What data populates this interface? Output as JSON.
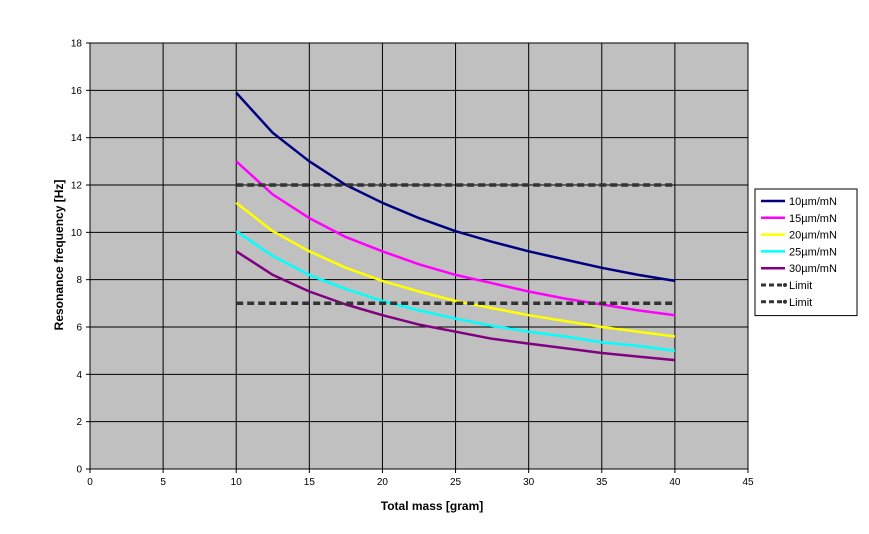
{
  "chart_data": {
    "type": "line",
    "title": "",
    "xlabel": "Total mass [gram]",
    "ylabel": "Resonance frequency [Hz]",
    "xlim": [
      0,
      45
    ],
    "ylim": [
      0,
      18
    ],
    "xticks": [
      0,
      5,
      10,
      15,
      20,
      25,
      30,
      35,
      40,
      45
    ],
    "yticks": [
      0,
      2,
      4,
      6,
      8,
      10,
      12,
      14,
      16,
      18
    ],
    "grid": true,
    "legend_position": "right",
    "background_color": "#c0c0c0",
    "x": [
      10,
      12.5,
      15,
      17.5,
      20,
      22.5,
      25,
      27.5,
      30,
      32.5,
      35,
      37.5,
      40
    ],
    "series": [
      {
        "name": "10µm/mN",
        "color": "#000080",
        "style": "solid",
        "values": [
          15.9,
          14.2,
          13.0,
          12.0,
          11.25,
          10.6,
          10.05,
          9.6,
          9.2,
          8.85,
          8.5,
          8.2,
          7.95
        ]
      },
      {
        "name": "15µm/mN",
        "color": "#ff00ff",
        "style": "solid",
        "values": [
          13.0,
          11.6,
          10.6,
          9.8,
          9.2,
          8.65,
          8.2,
          7.85,
          7.5,
          7.2,
          6.95,
          6.7,
          6.5
        ]
      },
      {
        "name": "20µm/mN",
        "color": "#ffff00",
        "style": "solid",
        "values": [
          11.25,
          10.05,
          9.2,
          8.5,
          7.95,
          7.5,
          7.1,
          6.8,
          6.5,
          6.25,
          6.0,
          5.8,
          5.6
        ]
      },
      {
        "name": "25µm/mN",
        "color": "#00ffff",
        "style": "solid",
        "values": [
          10.05,
          9.0,
          8.2,
          7.6,
          7.1,
          6.7,
          6.35,
          6.05,
          5.8,
          5.6,
          5.35,
          5.2,
          5.0
        ]
      },
      {
        "name": "30µm/mN",
        "color": "#800080",
        "style": "solid",
        "values": [
          9.2,
          8.2,
          7.5,
          6.95,
          6.5,
          6.1,
          5.8,
          5.5,
          5.3,
          5.1,
          4.9,
          4.75,
          4.6
        ]
      },
      {
        "name": "Limit",
        "color": "#333333",
        "style": "dashed",
        "values": [
          12,
          12,
          12,
          12,
          12,
          12,
          12,
          12,
          12,
          12,
          12,
          12,
          12
        ]
      },
      {
        "name": "Limit",
        "color": "#333333",
        "style": "dashed",
        "values": [
          7,
          7,
          7,
          7,
          7,
          7,
          7,
          7,
          7,
          7,
          7,
          7,
          7
        ]
      }
    ]
  }
}
